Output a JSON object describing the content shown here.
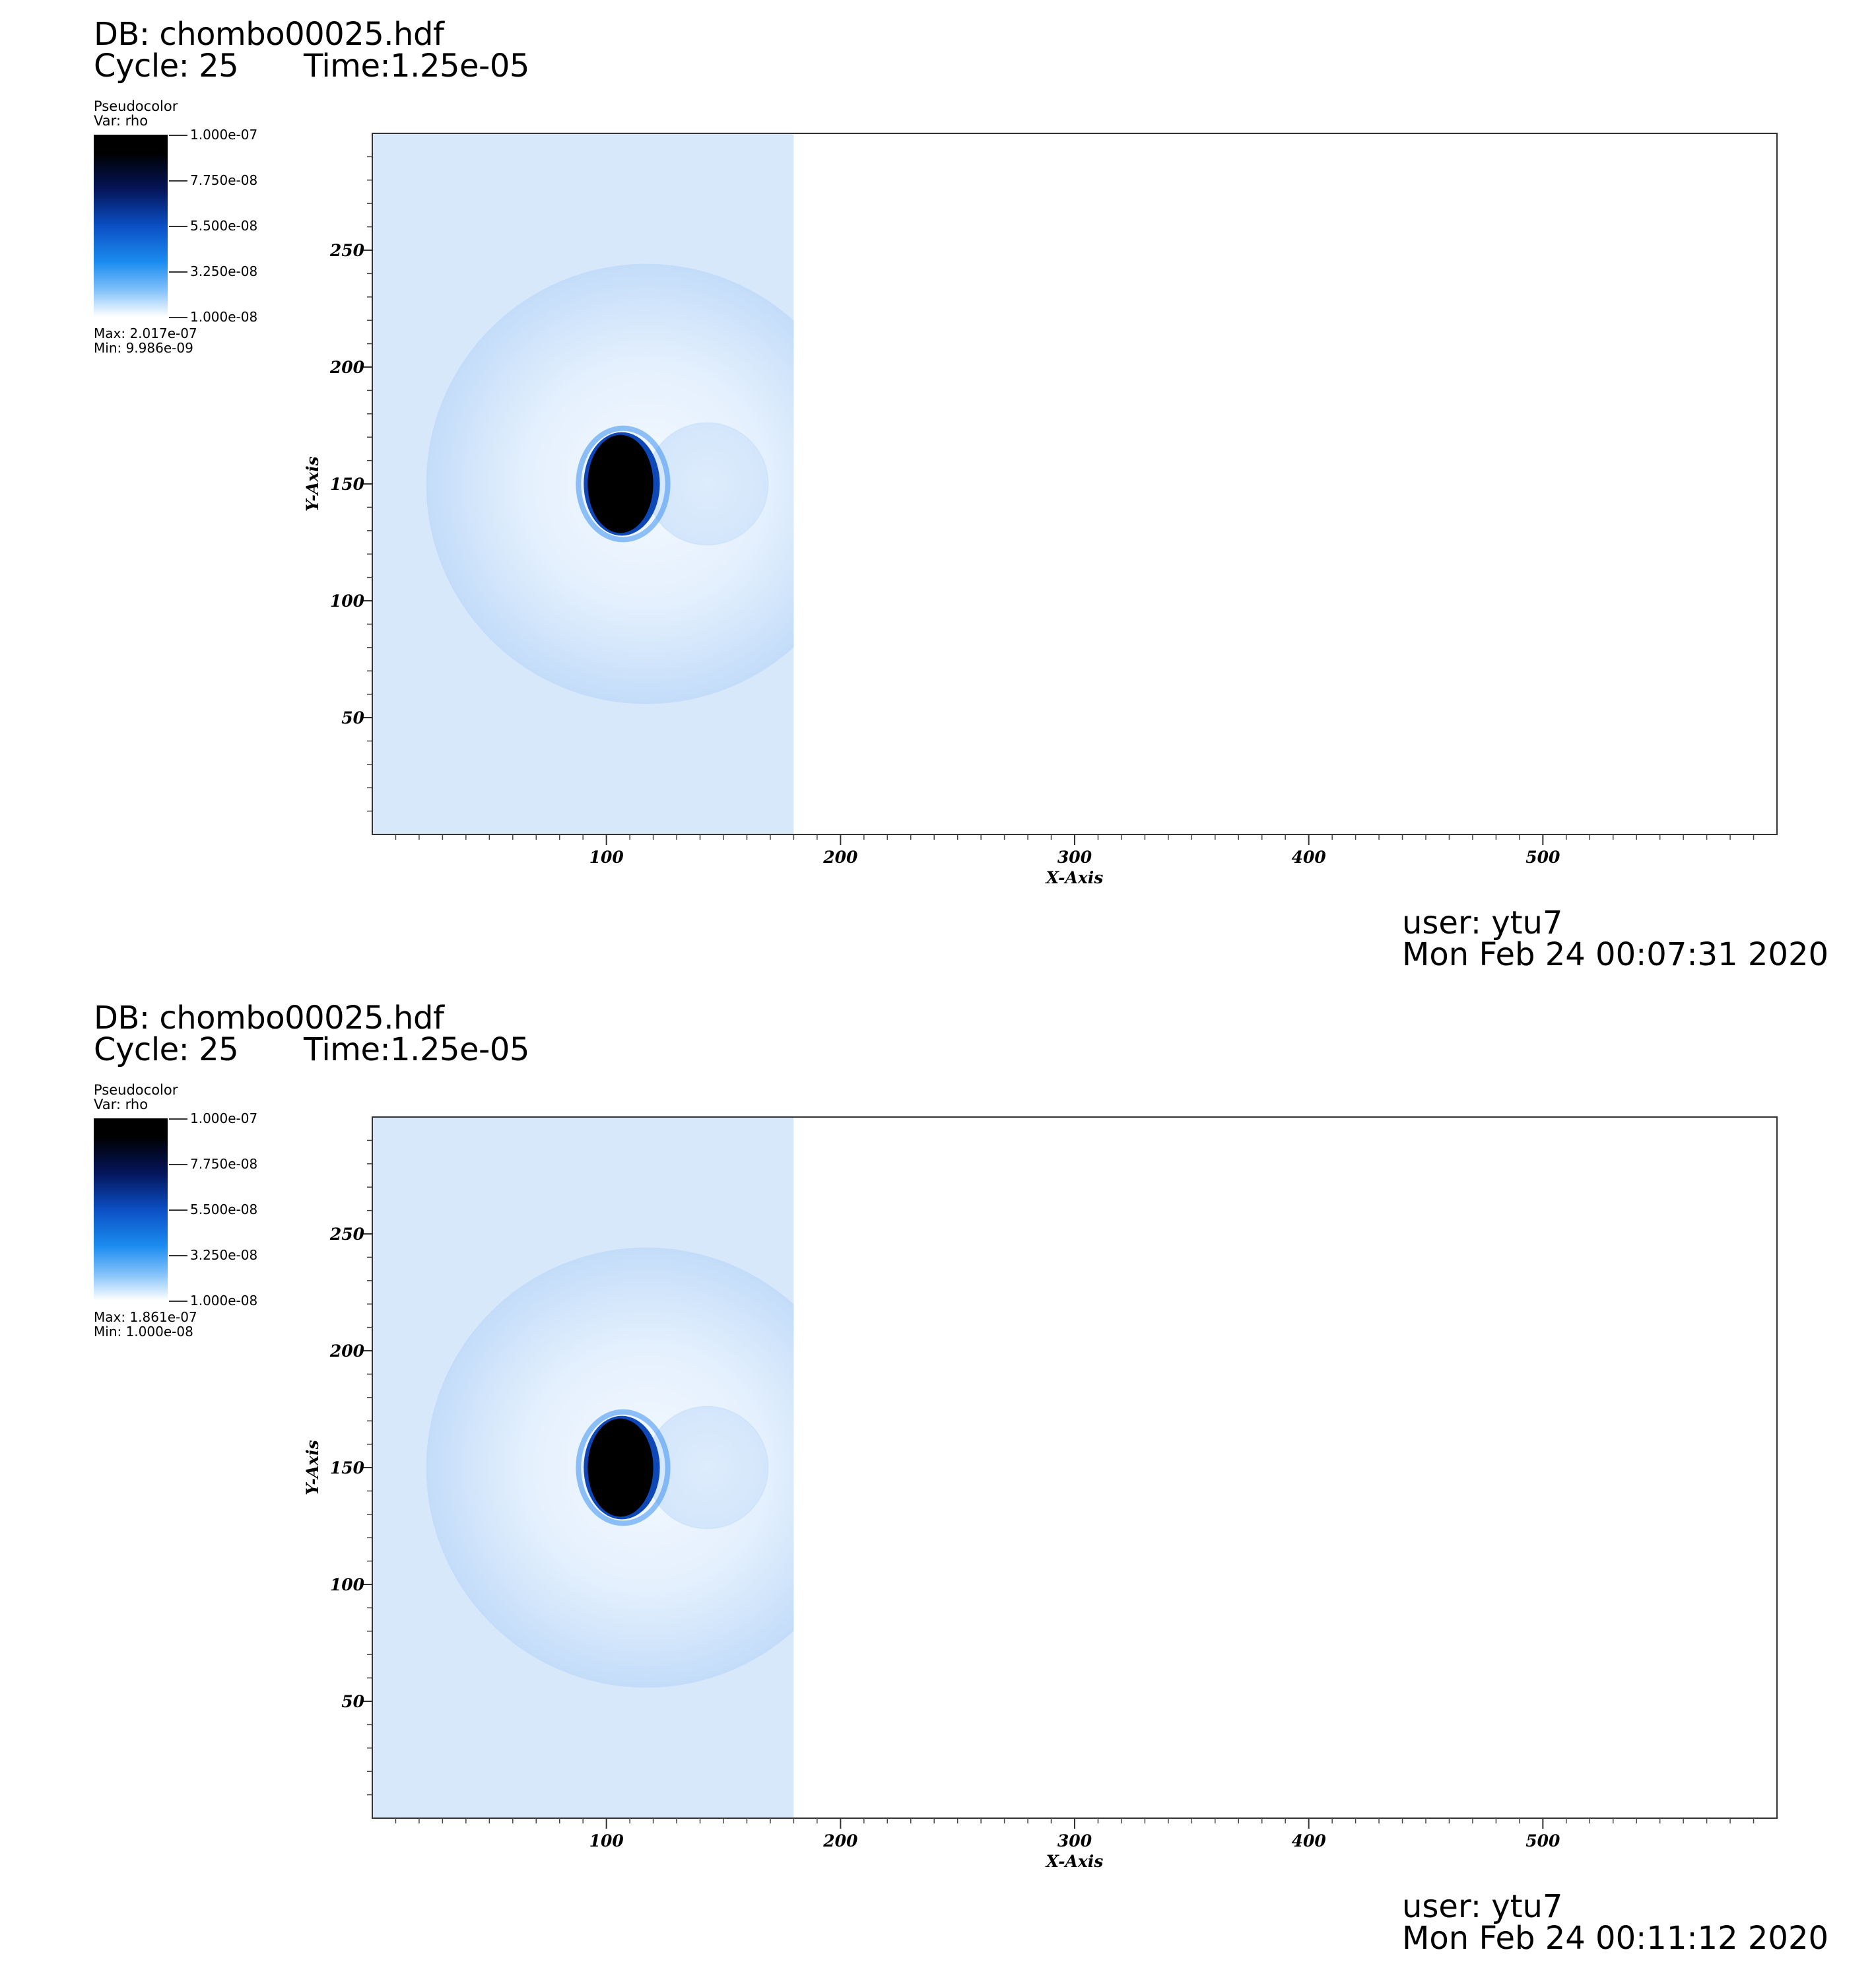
{
  "chart_data": [
    {
      "type": "heatmap",
      "title": "DB: chombo00025.hdf",
      "cycle_text": "Cycle: 25",
      "time_text": "Time:1.25e-05",
      "plot_type": "Pseudocolor",
      "variable": "Var: rho",
      "colorbar": {
        "ticks": [
          "1.000e-07",
          "7.750e-08",
          "5.500e-08",
          "3.250e-08",
          "1.000e-08"
        ],
        "values": [
          1e-07,
          7.75e-08,
          5.5e-08,
          3.25e-08,
          1e-08
        ],
        "colors": [
          "#000000",
          "#05155a",
          "#0b4fc4",
          "#1b8cf0",
          "#ffffff"
        ]
      },
      "max_text": "Max:  2.017e-07",
      "min_text": "Min:  9.986e-09",
      "xlabel": "X-Axis",
      "ylabel": "Y-Axis",
      "xlim": [
        0,
        600
      ],
      "ylim": [
        0,
        300
      ],
      "xticks": [
        100,
        200,
        300,
        400,
        500
      ],
      "yticks": [
        50,
        100,
        150,
        200,
        250
      ],
      "xtick_labels": [
        "100",
        "200",
        "300",
        "400",
        "500"
      ],
      "ytick_labels": [
        "50",
        "100",
        "150",
        "200",
        "250"
      ],
      "field": {
        "filled_region_x": [
          0,
          180
        ],
        "background_color": "#d7e8fb",
        "outer_shell": {
          "center": [
            117,
            150
          ],
          "radius": 94
        },
        "inner_bubble": {
          "center": [
            143,
            150
          ],
          "radius": 26
        },
        "dense_core": {
          "center": [
            106,
            150
          ],
          "rx": 14,
          "ry": 21
        }
      },
      "user": "user: ytu7",
      "date": "Mon Feb 24 00:07:31 2020"
    },
    {
      "type": "heatmap",
      "title": "DB: chombo00025.hdf",
      "cycle_text": "Cycle: 25",
      "time_text": "Time:1.25e-05",
      "plot_type": "Pseudocolor",
      "variable": "Var: rho",
      "colorbar": {
        "ticks": [
          "1.000e-07",
          "7.750e-08",
          "5.500e-08",
          "3.250e-08",
          "1.000e-08"
        ],
        "values": [
          1e-07,
          7.75e-08,
          5.5e-08,
          3.25e-08,
          1e-08
        ],
        "colors": [
          "#000000",
          "#05155a",
          "#0b4fc4",
          "#1b8cf0",
          "#ffffff"
        ]
      },
      "max_text": "Max:  1.861e-07",
      "min_text": "Min:  1.000e-08",
      "xlabel": "X-Axis",
      "ylabel": "Y-Axis",
      "xlim": [
        0,
        600
      ],
      "ylim": [
        0,
        300
      ],
      "xticks": [
        100,
        200,
        300,
        400,
        500
      ],
      "yticks": [
        50,
        100,
        150,
        200,
        250
      ],
      "xtick_labels": [
        "100",
        "200",
        "300",
        "400",
        "500"
      ],
      "ytick_labels": [
        "50",
        "100",
        "150",
        "200",
        "250"
      ],
      "field": {
        "filled_region_x": [
          0,
          180
        ],
        "background_color": "#d7e8fb",
        "outer_shell": {
          "center": [
            117,
            150
          ],
          "radius": 94
        },
        "inner_bubble": {
          "center": [
            143,
            150
          ],
          "radius": 26
        },
        "dense_core": {
          "center": [
            106,
            150
          ],
          "rx": 14,
          "ry": 21
        }
      },
      "user": "user: ytu7",
      "date": "Mon Feb 24 00:11:12 2020"
    }
  ]
}
